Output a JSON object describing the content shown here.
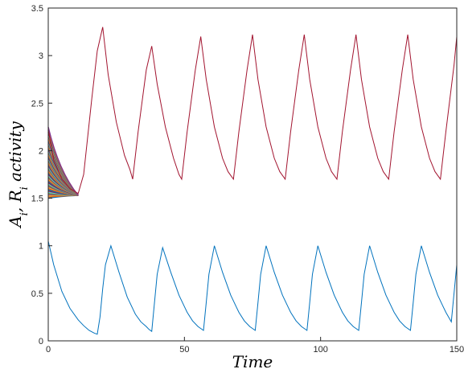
{
  "chart_data": {
    "type": "line",
    "title": "",
    "xlabel": "Time",
    "ylabel": "A_i, R_i activity",
    "xlim": [
      0,
      150
    ],
    "ylim": [
      0,
      3.5
    ],
    "xticks": [
      0,
      50,
      100,
      150
    ],
    "yticks": [
      0,
      0.5,
      1,
      1.5,
      2,
      2.5,
      3,
      3.5
    ],
    "grid": false,
    "legend": "none",
    "series": [
      {
        "color": "#0072BD",
        "x": [
          0,
          2,
          5,
          8,
          11,
          13,
          15,
          17,
          18,
          19,
          20,
          21,
          23,
          26,
          29,
          31,
          32,
          34,
          36,
          37,
          38,
          39,
          40,
          42,
          45,
          48,
          50,
          51,
          53,
          55,
          56,
          57,
          58,
          59,
          61,
          64,
          67,
          69,
          70,
          72,
          74,
          75,
          76,
          77,
          78,
          80,
          83,
          86,
          88,
          89,
          91,
          93,
          94,
          95,
          96,
          97,
          99,
          102,
          105,
          107,
          108,
          110,
          112,
          113,
          114,
          115,
          116,
          118,
          121,
          124,
          126,
          127,
          129,
          131,
          132,
          133,
          134,
          135,
          137,
          140,
          143,
          145,
          146,
          148,
          150
        ],
        "y": [
          1.05,
          0.8,
          0.52,
          0.34,
          0.22,
          0.16,
          0.11,
          0.08,
          0.07,
          0.25,
          0.55,
          0.8,
          1.0,
          0.72,
          0.46,
          0.34,
          0.28,
          0.2,
          0.15,
          0.12,
          0.1,
          0.4,
          0.7,
          0.98,
          0.72,
          0.48,
          0.36,
          0.3,
          0.21,
          0.15,
          0.13,
          0.11,
          0.4,
          0.7,
          1.0,
          0.72,
          0.48,
          0.36,
          0.3,
          0.21,
          0.15,
          0.13,
          0.11,
          0.4,
          0.7,
          1.0,
          0.72,
          0.48,
          0.36,
          0.3,
          0.21,
          0.15,
          0.13,
          0.11,
          0.4,
          0.7,
          1.0,
          0.72,
          0.48,
          0.36,
          0.3,
          0.21,
          0.15,
          0.13,
          0.11,
          0.4,
          0.7,
          1.0,
          0.72,
          0.48,
          0.36,
          0.3,
          0.21,
          0.15,
          0.13,
          0.11,
          0.4,
          0.7,
          1.0,
          0.72,
          0.48,
          0.36,
          0.3,
          0.2,
          0.8
        ]
      },
      {
        "color": "#A2142F",
        "x": [
          0,
          2,
          5,
          8,
          11,
          13,
          16,
          18,
          20,
          22,
          25,
          28,
          30,
          31,
          33,
          36,
          38,
          40,
          43,
          46,
          48,
          49,
          51,
          54,
          56,
          58,
          61,
          64,
          66,
          68,
          70,
          73,
          75,
          77,
          80,
          83,
          85,
          87,
          89,
          92,
          94,
          96,
          99,
          102,
          104,
          106,
          108,
          111,
          113,
          115,
          118,
          121,
          123,
          125,
          127,
          130,
          132,
          134,
          137,
          140,
          142,
          144,
          146,
          149,
          150
        ],
        "y": [
          2.22,
          1.9,
          1.7,
          1.6,
          1.55,
          1.75,
          2.55,
          3.05,
          3.3,
          2.8,
          2.3,
          1.95,
          1.8,
          1.7,
          2.2,
          2.85,
          3.1,
          2.7,
          2.25,
          1.92,
          1.75,
          1.7,
          2.2,
          2.85,
          3.2,
          2.75,
          2.25,
          1.92,
          1.78,
          1.7,
          2.2,
          2.85,
          3.22,
          2.75,
          2.25,
          1.92,
          1.78,
          1.7,
          2.2,
          2.85,
          3.22,
          2.75,
          2.25,
          1.92,
          1.78,
          1.7,
          2.2,
          2.85,
          3.22,
          2.75,
          2.25,
          1.92,
          1.78,
          1.7,
          2.2,
          2.85,
          3.22,
          2.75,
          2.25,
          1.92,
          1.78,
          1.7,
          2.2,
          2.9,
          3.2
        ]
      }
    ],
    "initial_band": {
      "description_colors": [
        "#0072BD",
        "#D95319",
        "#EDB120",
        "#7E2F8E",
        "#77AC30",
        "#4DBEEE",
        "#A2142F"
      ],
      "y_start_range": [
        1.5,
        2.25
      ],
      "y_converge": 1.53,
      "x_converge": 11
    }
  }
}
